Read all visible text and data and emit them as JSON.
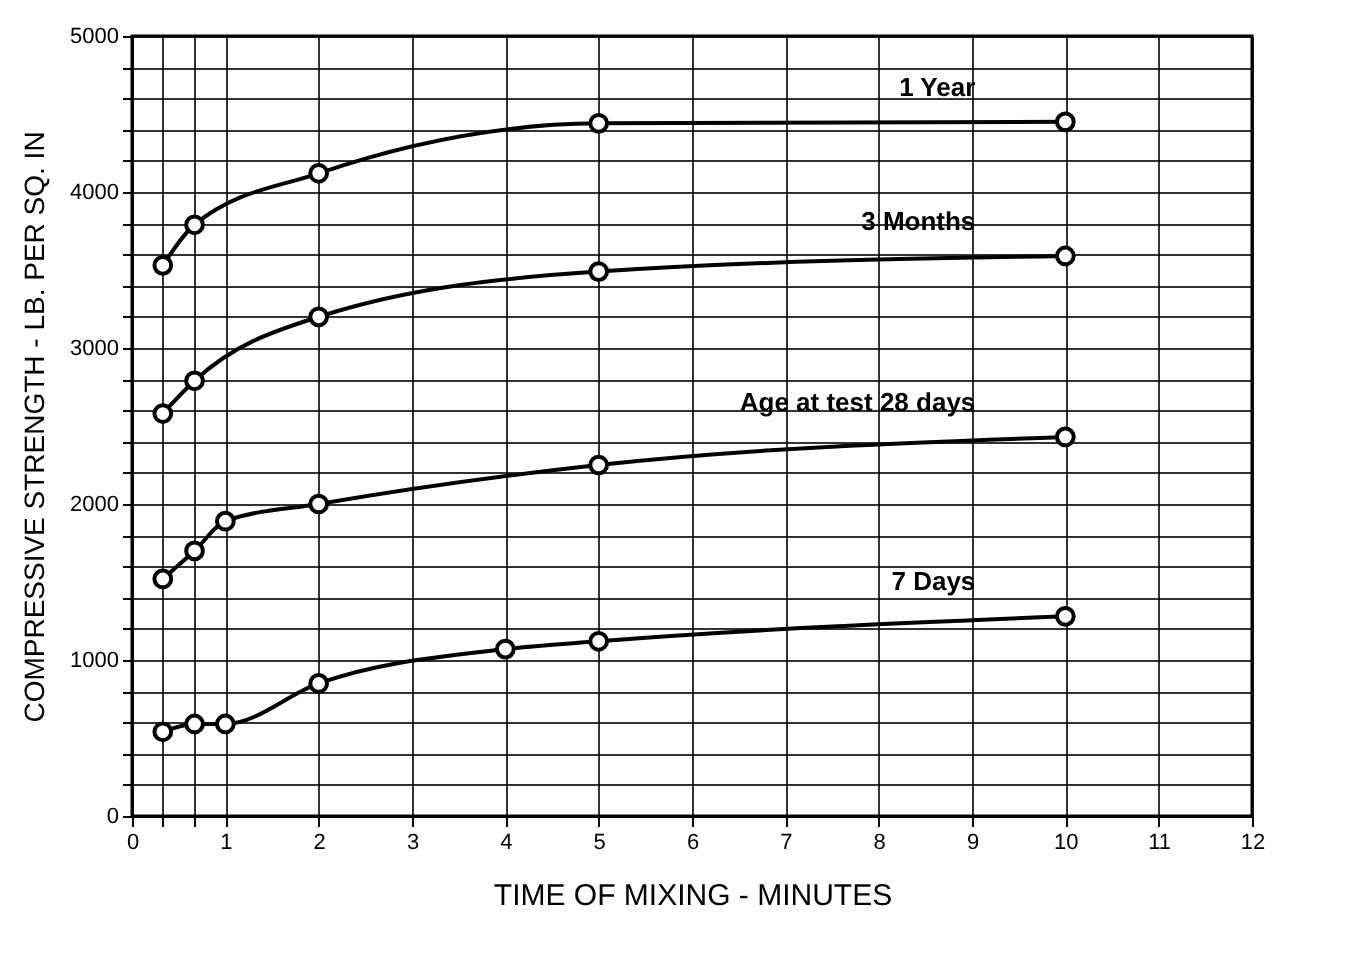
{
  "chart_data": {
    "type": "line",
    "xlabel": "TIME OF MIXING - MINUTES",
    "ylabel": "COMPRESSIVE STRENGTH - LB. PER SQ. IN",
    "x": [
      0.33,
      0.67,
      2,
      5,
      10
    ],
    "series": [
      {
        "name": "1 Year",
        "color": "#000000",
        "values": [
          3530,
          3790,
          4120,
          4440,
          4450
        ]
      },
      {
        "name": "3 Months",
        "color": "#000000",
        "values": [
          2580,
          2790,
          3200,
          3490,
          3590
        ]
      },
      {
        "name": "Age at test 28 days",
        "color": "#000000",
        "x": [
          0.33,
          0.67,
          1,
          2,
          5,
          10
        ],
        "values": [
          1520,
          1700,
          1890,
          2000,
          2250,
          2430
        ]
      },
      {
        "name": "7 Days",
        "color": "#000000",
        "x": [
          0.33,
          0.67,
          1,
          2,
          4,
          5,
          10
        ],
        "values": [
          540,
          590,
          590,
          850,
          1070,
          1120,
          1280
        ]
      }
    ],
    "xlim": [
      0,
      12
    ],
    "xticks": [
      0,
      {
        "value": 0.33,
        "label": null
      },
      {
        "value": 0.67,
        "label": null
      },
      1,
      2,
      3,
      4,
      5,
      6,
      7,
      8,
      9,
      10,
      11,
      12
    ],
    "ylim": [
      0,
      5000
    ],
    "yticks": [
      0,
      {
        "value": 200,
        "label": null
      },
      {
        "value": 400,
        "label": null
      },
      {
        "value": 600,
        "label": null
      },
      {
        "value": 800,
        "label": null
      },
      1000,
      {
        "value": 1200,
        "label": null
      },
      {
        "value": 1400,
        "label": null
      },
      {
        "value": 1600,
        "label": null
      },
      {
        "value": 1800,
        "label": null
      },
      2000,
      {
        "value": 2200,
        "label": null
      },
      {
        "value": 2400,
        "label": null
      },
      {
        "value": 2600,
        "label": null
      },
      {
        "value": 2800,
        "label": null
      },
      3000,
      {
        "value": 3200,
        "label": null
      },
      {
        "value": 3400,
        "label": null
      },
      {
        "value": 3600,
        "label": null
      },
      {
        "value": 3800,
        "label": null
      },
      4000,
      {
        "value": 4200,
        "label": null
      },
      {
        "value": 4400,
        "label": null
      },
      {
        "value": 4600,
        "label": null
      },
      {
        "value": 4800,
        "label": null
      },
      5000
    ],
    "grid": true,
    "legend": false,
    "marker": "circle",
    "line_style": "solid"
  }
}
